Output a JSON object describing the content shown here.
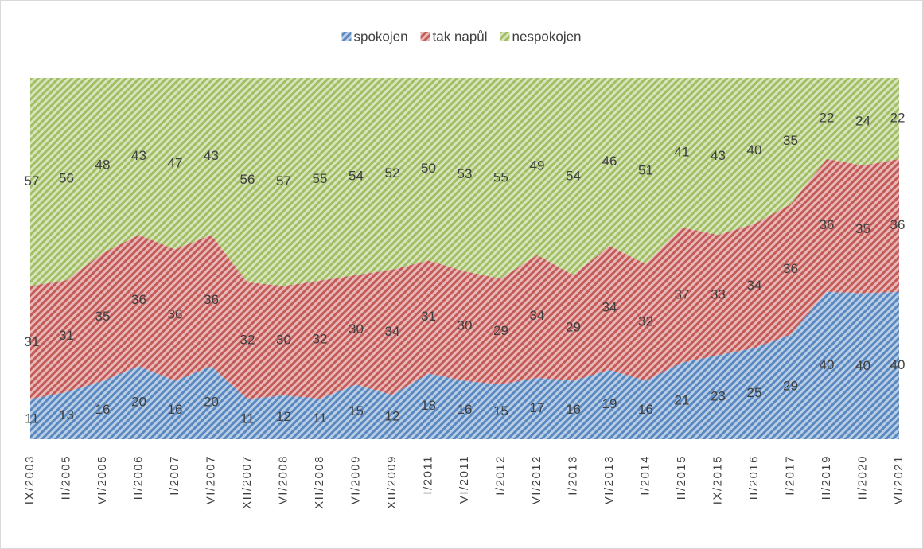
{
  "chart_data": {
    "type": "area",
    "stacking": "percent",
    "categories": [
      "IX/2003",
      "II/2005",
      "VI/2005",
      "II/2006",
      "I/2007",
      "VI/2007",
      "XII/2007",
      "VI/2008",
      "XII/2008",
      "VI/2009",
      "XII/2009",
      "I/2011",
      "VI/2011",
      "I/2012",
      "VI/2012",
      "I/2013",
      "VI/2013",
      "I/2014",
      "II/2015",
      "IX/2015",
      "II/2016",
      "I/2017",
      "II/2019",
      "II/2020",
      "VI/2021"
    ],
    "series": [
      {
        "name": "spokojen",
        "color": "#4f81bd",
        "values": [
          11,
          13,
          16,
          20,
          16,
          20,
          11,
          12,
          11,
          15,
          12,
          18,
          16,
          15,
          17,
          16,
          19,
          16,
          21,
          23,
          25,
          29,
          40,
          40,
          40
        ]
      },
      {
        "name": "tak napůl",
        "color": "#c0504d",
        "values": [
          31,
          31,
          35,
          36,
          36,
          36,
          32,
          30,
          32,
          30,
          34,
          31,
          30,
          29,
          34,
          29,
          34,
          32,
          37,
          33,
          34,
          36,
          36,
          35,
          36
        ]
      },
      {
        "name": "nespokojen",
        "color": "#9bbb59",
        "values": [
          57,
          56,
          48,
          43,
          47,
          43,
          56,
          57,
          55,
          54,
          52,
          50,
          53,
          55,
          49,
          54,
          46,
          51,
          41,
          43,
          40,
          35,
          22,
          24,
          22
        ]
      }
    ],
    "legend": "top"
  }
}
